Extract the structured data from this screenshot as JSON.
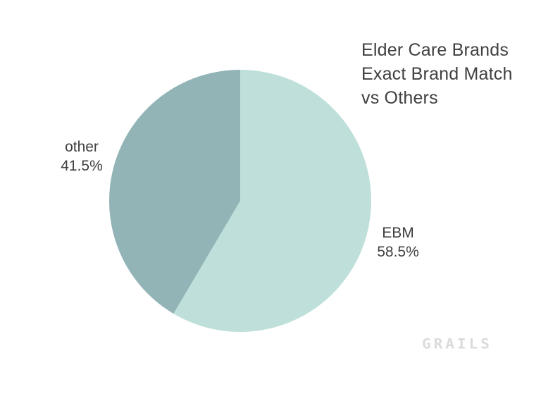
{
  "page": {
    "background": "#ffffff"
  },
  "title": {
    "full": "Elder Care Brands Exact Brand Match vs Others",
    "lines": [
      "Elder Care Brands",
      "Exact Brand Match",
      "vs Others"
    ],
    "color": "#404040"
  },
  "watermark": {
    "text": "GRAILS",
    "color": "#dbdbdb"
  },
  "chart_data": {
    "type": "pie",
    "title": "Elder Care Brands Exact Brand Match vs Others",
    "unit": "percent",
    "direction": "clockwise",
    "start_angle_deg": 0,
    "legend": "none",
    "labels_position": "outside",
    "slices": [
      {
        "label": "EBM",
        "value": 58.5,
        "pct_label": "58.5%",
        "color": "#bfe0da",
        "label_side": "right"
      },
      {
        "label": "other",
        "value": 41.5,
        "pct_label": "41.5%",
        "color": "#93b4b7",
        "label_side": "left"
      }
    ]
  }
}
